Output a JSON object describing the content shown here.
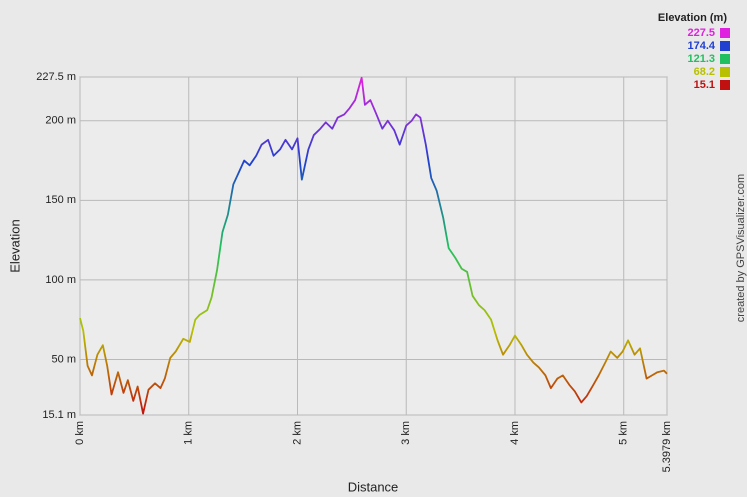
{
  "chart_data": {
    "type": "line",
    "x_label": "Distance",
    "y_label": "Elevation",
    "credit": "created by GPSVisualizer.com",
    "color_scale": {
      "title": "Elevation (m)",
      "values": [
        227.5,
        174.4,
        121.3,
        68.2,
        15.1
      ],
      "colors": [
        "#e020e0",
        "#2040d0",
        "#20c060",
        "#b8c000",
        "#c01010"
      ]
    },
    "xlim": [
      0,
      5.3979
    ],
    "ylim": [
      15.1,
      227.5
    ],
    "xticks": [
      {
        "value": 0,
        "label": "0 km"
      },
      {
        "value": 1,
        "label": "1 km"
      },
      {
        "value": 2,
        "label": "2 km"
      },
      {
        "value": 3,
        "label": "3 km"
      },
      {
        "value": 4,
        "label": "4 km"
      },
      {
        "value": 5,
        "label": "5 km"
      },
      {
        "value": 5.3979,
        "label": "5.3979 km"
      }
    ],
    "yticks": [
      {
        "value": 15.1,
        "label": "15.1 m"
      },
      {
        "value": 50,
        "label": "50 m"
      },
      {
        "value": 100,
        "label": "100 m"
      },
      {
        "value": 150,
        "label": "150 m"
      },
      {
        "value": 200,
        "label": "200 m"
      },
      {
        "value": 227.5,
        "label": "227.5 m"
      }
    ],
    "grid": true,
    "x": [
      0,
      0.03,
      0.07,
      0.11,
      0.16,
      0.21,
      0.25,
      0.29,
      0.35,
      0.4,
      0.44,
      0.49,
      0.53,
      0.58,
      0.63,
      0.69,
      0.74,
      0.78,
      0.83,
      0.88,
      0.95,
      1.01,
      1.06,
      1.1,
      1.17,
      1.21,
      1.26,
      1.31,
      1.36,
      1.41,
      1.45,
      1.51,
      1.56,
      1.62,
      1.67,
      1.73,
      1.78,
      1.84,
      1.89,
      1.95,
      2.0,
      2.04,
      2.1,
      2.15,
      2.21,
      2.26,
      2.32,
      2.37,
      2.43,
      2.48,
      2.53,
      2.59,
      2.62,
      2.67,
      2.72,
      2.78,
      2.83,
      2.89,
      2.94,
      3.0,
      3.05,
      3.09,
      3.13,
      3.18,
      3.23,
      3.28,
      3.34,
      3.39,
      3.45,
      3.51,
      3.56,
      3.61,
      3.67,
      3.72,
      3.78,
      3.84,
      3.89,
      3.95,
      4.0,
      4.06,
      4.11,
      4.17,
      4.22,
      4.28,
      4.33,
      4.39,
      4.44,
      4.5,
      4.55,
      4.61,
      4.66,
      4.72,
      4.77,
      4.83,
      4.88,
      4.94,
      4.99,
      5.04,
      5.1,
      5.15,
      5.21,
      5.26,
      5.31,
      5.37,
      5.3979
    ],
    "y": [
      76,
      68,
      46,
      40,
      53,
      59,
      46,
      28,
      42,
      29,
      37,
      24,
      33,
      16,
      31,
      35,
      32,
      38,
      51,
      55,
      63,
      61,
      75,
      78,
      81,
      89,
      106,
      130,
      141,
      160,
      166,
      175,
      172,
      178,
      185,
      188,
      178,
      182,
      188,
      182,
      189,
      163,
      182,
      191,
      195,
      199,
      195,
      202,
      204,
      208,
      213,
      227,
      210,
      213,
      205,
      195,
      200,
      194,
      185,
      197,
      200,
      204,
      202,
      185,
      164,
      156,
      139,
      120,
      114,
      107,
      105,
      90,
      84,
      81,
      75,
      62,
      53,
      59,
      65,
      59,
      53,
      48,
      45,
      40,
      32,
      38,
      40,
      34,
      30,
      23,
      27,
      34,
      40,
      48,
      55,
      51,
      55,
      62,
      53,
      57,
      38,
      40,
      42,
      43,
      41
    ]
  }
}
